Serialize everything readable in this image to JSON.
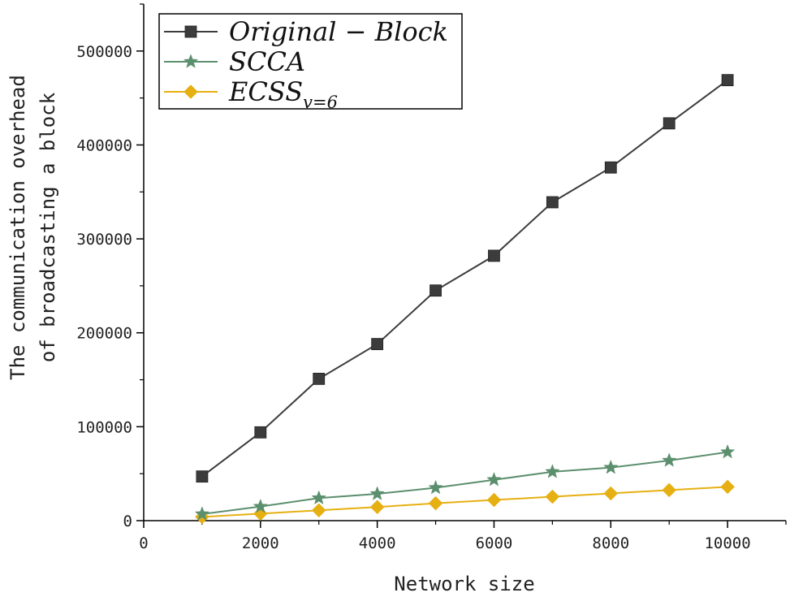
{
  "chart_data": {
    "type": "line",
    "title": "",
    "xlabel": "Network size",
    "ylabel_line1": "The communication overhead",
    "ylabel_line2": "of broadcasting a block",
    "xlim": [
      0,
      11000
    ],
    "ylim": [
      0,
      550000
    ],
    "x_ticks": [
      0,
      2000,
      4000,
      6000,
      8000,
      10000
    ],
    "x_tick_labels": [
      "0",
      "2000",
      "4000",
      "6000",
      "8000",
      "10000"
    ],
    "y_ticks": [
      0,
      100000,
      200000,
      300000,
      400000,
      500000
    ],
    "y_tick_labels": [
      "0",
      "100000",
      "200000",
      "300000",
      "400000",
      "500000"
    ],
    "x": [
      1000,
      2000,
      3000,
      4000,
      5000,
      6000,
      7000,
      8000,
      9000,
      10000
    ],
    "series": [
      {
        "name": "Original − Block",
        "legend_main": "Original − Block",
        "legend_sub": "",
        "marker": "square",
        "color": "#3c3c3c",
        "values": [
          47000,
          94000,
          151000,
          188000,
          245000,
          282000,
          339000,
          376000,
          423000,
          469000
        ]
      },
      {
        "name": "SCCA",
        "legend_main": "SCCA",
        "legend_sub": "",
        "marker": "star",
        "color": "#5c8f6e",
        "values": [
          7000,
          15000,
          24000,
          28500,
          35000,
          43500,
          52000,
          56500,
          64000,
          73000
        ]
      },
      {
        "name": "ECSS v=6",
        "legend_main": "ECSS",
        "legend_sub": "v=6",
        "marker": "diamond",
        "color": "#e6b012",
        "values": [
          4000,
          7500,
          11000,
          14500,
          18500,
          22000,
          25500,
          29000,
          32500,
          36000
        ]
      }
    ],
    "legend_position": "top-left",
    "grid": false
  }
}
